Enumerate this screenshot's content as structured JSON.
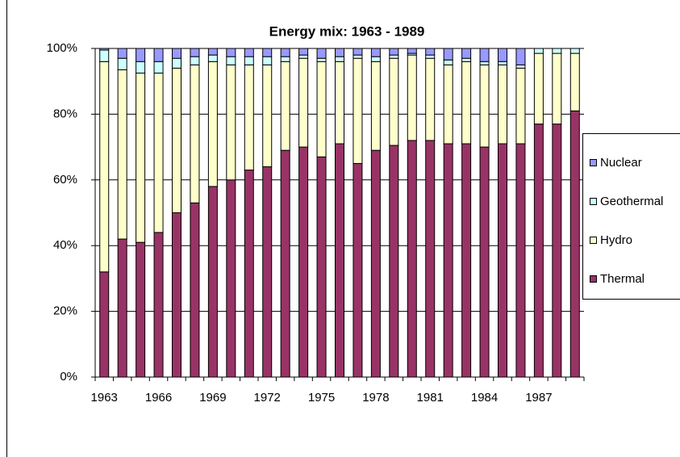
{
  "chart_data": {
    "type": "stacked_bar",
    "title": "Energy mix: 1963 - 1989",
    "categories": [
      "1963",
      null,
      null,
      "1966",
      null,
      null,
      "1969",
      null,
      null,
      "1972",
      null,
      null,
      "1975",
      null,
      null,
      "1978",
      null,
      null,
      "1981",
      null,
      null,
      "1984",
      null,
      null,
      "1987",
      null,
      null
    ],
    "series": [
      {
        "name": "Thermal",
        "color": "#993366",
        "values": [
          32,
          42,
          41,
          44,
          50,
          53,
          58,
          60,
          63,
          64,
          69,
          70,
          67,
          71,
          65,
          69,
          70.5,
          72,
          72,
          71,
          71,
          70,
          71,
          71,
          77,
          77,
          81
        ]
      },
      {
        "name": "Hydro",
        "color": "#ffffcc",
        "values": [
          64,
          51.5,
          51.5,
          48.5,
          44,
          42,
          38,
          35,
          32,
          31,
          27,
          27,
          29,
          25,
          32,
          27,
          26.5,
          26,
          25,
          24,
          25,
          25,
          24,
          23,
          21.5,
          21.5,
          17.5
        ]
      },
      {
        "name": "Geothermal",
        "color": "#ccffff",
        "values": [
          3.5,
          3.5,
          3.5,
          3.5,
          3,
          2.5,
          2,
          2.5,
          2.5,
          2.5,
          1.5,
          1,
          1,
          1.5,
          1,
          1.5,
          1,
          0.5,
          1,
          1.5,
          1,
          1,
          1,
          1,
          1.5,
          1.5,
          1.5
        ]
      },
      {
        "name": "Nuclear",
        "color": "#9999ff",
        "values": [
          0.5,
          3,
          4,
          4,
          3,
          2.5,
          2,
          2.5,
          2.5,
          2.5,
          2.5,
          2,
          3,
          2.5,
          2,
          2.5,
          2,
          1.5,
          2,
          3.5,
          3,
          4,
          4,
          5,
          0,
          0,
          0
        ]
      }
    ],
    "ylim": [
      0,
      100
    ],
    "yticks": [
      {
        "value": 0,
        "label": "0%"
      },
      {
        "value": 20,
        "label": "20%"
      },
      {
        "value": 40,
        "label": "40%"
      },
      {
        "value": 60,
        "label": "60%"
      },
      {
        "value": 80,
        "label": "80%"
      },
      {
        "value": 100,
        "label": "100%"
      }
    ],
    "grid": true,
    "legend": "right"
  }
}
